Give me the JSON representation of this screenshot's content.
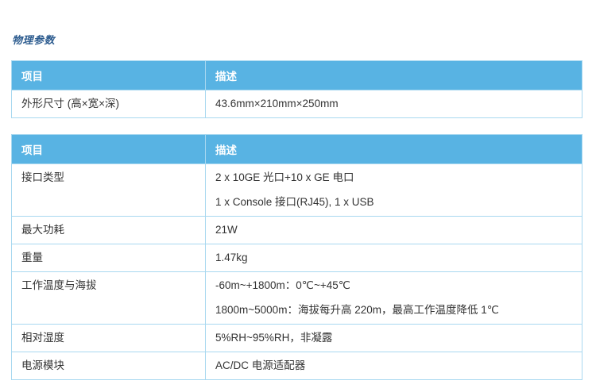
{
  "page": {
    "section_title": "物理参数"
  },
  "colors": {
    "header_bg": "#58b3e3",
    "table_border": "#a8d8f0",
    "title_color": "#2d5c8f",
    "header_text": "#ffffff",
    "body_text": "#333333"
  },
  "tables": [
    {
      "headers": [
        "项目",
        "描述"
      ],
      "rows": [
        {
          "item": "外形尺寸 (高×宽×深)",
          "desc": [
            "43.6mm×210mm×250mm"
          ]
        }
      ]
    },
    {
      "headers": [
        "项目",
        "描述"
      ],
      "rows": [
        {
          "item": "接口类型",
          "desc": [
            "2 x 10GE 光口+10 x GE 电口",
            "1 x Console 接口(RJ45), 1 x USB"
          ]
        },
        {
          "item": "最大功耗",
          "desc": [
            "21W"
          ]
        },
        {
          "item": "重量",
          "desc": [
            "1.47kg"
          ]
        },
        {
          "item": "工作温度与海拔",
          "desc": [
            "-60m~+1800m：0℃~+45℃",
            "1800m~5000m：海拔每升高 220m，最高工作温度降低 1℃"
          ]
        },
        {
          "item": "相对湿度",
          "desc": [
            "5%RH~95%RH，非凝露"
          ]
        },
        {
          "item": "电源模块",
          "desc": [
            "AC/DC 电源适配器"
          ]
        }
      ]
    }
  ]
}
